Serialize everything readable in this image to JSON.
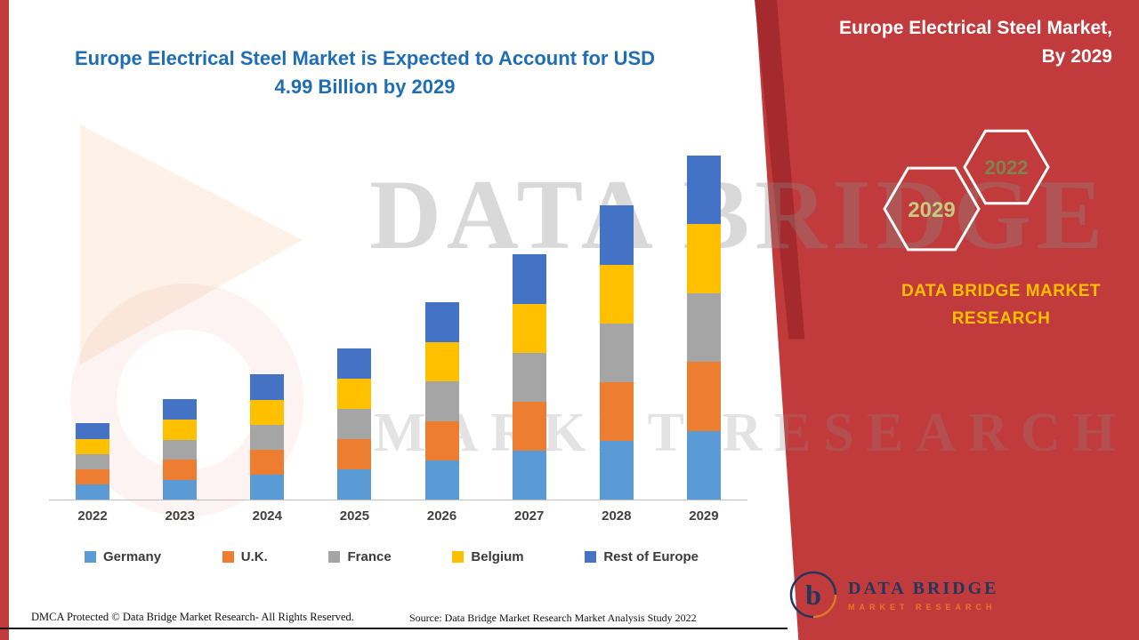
{
  "page": {
    "left_title_line1": "Europe Electrical Steel Market is Expected to Account for USD",
    "left_title_line2": "4.99 Billion by 2029"
  },
  "right_panel": {
    "title_line1": "Europe Electrical Steel Market,",
    "title_line2": "By 2029",
    "hexagons": [
      {
        "label": "2029",
        "text_color": "#C6CB82"
      },
      {
        "label": "2022",
        "text_color": "#7E8353"
      }
    ],
    "brand_text": "DATA BRIDGE MARKET RESEARCH"
  },
  "watermark": {
    "line1": "DATA BRIDGE",
    "line2": "MARKET RESEARCH"
  },
  "footer": {
    "dmca": "DMCA Protected © Data Bridge Market Research- All Rights Reserved.",
    "source": "Source: Data Bridge Market Research Market Analysis Study 2022"
  },
  "logo": {
    "monogram": "b",
    "name": "DATA BRIDGE",
    "tagline": "MARKET RESEARCH"
  },
  "colors": {
    "panel_red": "#C23B3C",
    "title_blue": "#1F6DB5",
    "brand_yellow": "#FFC000"
  },
  "chart_data": {
    "type": "bar",
    "stacked": true,
    "title": "Europe Electrical Steel Market is Expected to Account for USD 4.99 Billion by 2029",
    "unit": "USD Billion",
    "categories": [
      "2022",
      "2023",
      "2024",
      "2025",
      "2026",
      "2027",
      "2028",
      "2029"
    ],
    "series": [
      {
        "name": "Germany",
        "color": "#5B9BD5",
        "values": [
          0.22,
          0.29,
          0.36,
          0.44,
          0.57,
          0.71,
          0.85,
          1.0
        ]
      },
      {
        "name": "U.K.",
        "color": "#ED7D31",
        "values": [
          0.22,
          0.29,
          0.36,
          0.44,
          0.57,
          0.71,
          0.85,
          1.0
        ]
      },
      {
        "name": "France",
        "color": "#A5A5A5",
        "values": [
          0.22,
          0.29,
          0.36,
          0.44,
          0.57,
          0.71,
          0.85,
          1.0
        ]
      },
      {
        "name": "Belgium",
        "color": "#FFC000",
        "values": [
          0.22,
          0.29,
          0.36,
          0.44,
          0.57,
          0.71,
          0.85,
          1.0
        ]
      },
      {
        "name": "Rest of Europe",
        "color": "#4472C4",
        "values": [
          0.23,
          0.3,
          0.38,
          0.43,
          0.58,
          0.72,
          0.87,
          0.99
        ]
      }
    ],
    "totals": [
      1.11,
      1.46,
      1.82,
      2.19,
      2.86,
      3.56,
      4.27,
      4.99
    ],
    "ylim": [
      0,
      5.2
    ],
    "grid": false,
    "axis_labels_visible": false,
    "legend_position": "bottom"
  }
}
